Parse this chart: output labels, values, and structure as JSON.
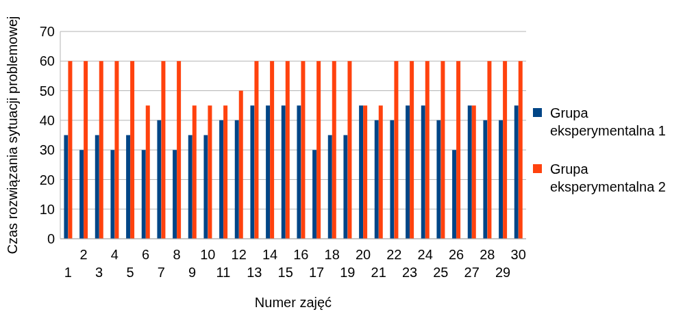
{
  "chart_data": {
    "type": "bar",
    "xlabel": "Numer zajęć",
    "ylabel": "Czas rozwiązania sytuacji problemowej",
    "categories": [
      "1",
      "2",
      "3",
      "4",
      "5",
      "6",
      "7",
      "8",
      "9",
      "10",
      "11",
      "12",
      "13",
      "14",
      "15",
      "16",
      "17",
      "18",
      "19",
      "20",
      "21",
      "22",
      "23",
      "24",
      "25",
      "26",
      "27",
      "28",
      "29",
      "30"
    ],
    "series": [
      {
        "name": "Grupa eksperymentalna 1",
        "color": "#004586",
        "values": [
          35,
          30,
          35,
          30,
          35,
          30,
          40,
          30,
          35,
          35,
          40,
          40,
          45,
          45,
          45,
          45,
          30,
          35,
          35,
          45,
          40,
          40,
          45,
          45,
          40,
          30,
          45,
          40,
          40,
          45
        ]
      },
      {
        "name": "Grupa eksperymentalna 2",
        "color": "#ff420e",
        "values": [
          60,
          60,
          60,
          60,
          60,
          45,
          60,
          60,
          45,
          45,
          45,
          50,
          60,
          60,
          60,
          60,
          60,
          60,
          60,
          45,
          45,
          60,
          60,
          60,
          60,
          60,
          45,
          60,
          60,
          60
        ]
      }
    ],
    "ylim": [
      0,
      70
    ],
    "yticks": [
      0,
      10,
      20,
      30,
      40,
      50,
      60,
      70
    ],
    "grid": "y",
    "legend": "right"
  }
}
